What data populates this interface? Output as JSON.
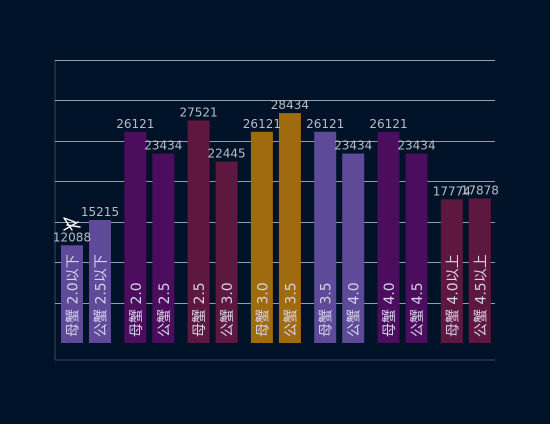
{
  "chart_data": {
    "type": "bar",
    "title": "",
    "xlabel": "",
    "ylabel": "",
    "ylim": [
      0,
      35000
    ],
    "y_step": 5000,
    "grid": true,
    "background": "#001228",
    "bars": [
      {
        "label": "母蟹 2.0以下",
        "value": 12088,
        "color": "#5e4a99"
      },
      {
        "label": "公蟹 2.5以下",
        "value": 15215,
        "color": "#5e4a99"
      },
      {
        "label": "母蟹 2.0",
        "value": 26121,
        "color": "#4d0d5e"
      },
      {
        "label": "公蟹 2.5",
        "value": 23434,
        "color": "#4d0d5e"
      },
      {
        "label": "母蟹 2.5",
        "value": 27521,
        "color": "#5e1840"
      },
      {
        "label": "公蟹 3.0",
        "value": 22445,
        "color": "#5e1840"
      },
      {
        "label": "母蟹 3.0",
        "value": 26121,
        "color": "#a06b0e"
      },
      {
        "label": "公蟹 3.5",
        "value": 28434,
        "color": "#a06b0e"
      },
      {
        "label": "母蟹 3.5",
        "value": 26121,
        "color": "#5e4a99"
      },
      {
        "label": "公蟹 4.0",
        "value": 23434,
        "color": "#5e4a99"
      },
      {
        "label": "母蟹 4.0",
        "value": 26121,
        "color": "#4d0d5e"
      },
      {
        "label": "公蟹 4.5",
        "value": 23434,
        "color": "#4d0d5e"
      },
      {
        "label": "母蟹 4.0以上",
        "value": 17774,
        "color": "#5e1840"
      },
      {
        "label": "公蟹 4.5以上",
        "value": 17878,
        "color": "#5e1840"
      }
    ],
    "colors": {
      "grid": "#c8ccd4",
      "axis": "#3a4556",
      "value_label": "#b8bcc6",
      "bar_text": "#d7d2e8"
    }
  }
}
